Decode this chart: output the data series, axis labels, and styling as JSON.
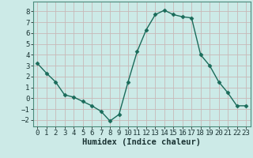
{
  "x": [
    0,
    1,
    2,
    3,
    4,
    5,
    6,
    7,
    8,
    9,
    10,
    11,
    12,
    13,
    14,
    15,
    16,
    17,
    18,
    19,
    20,
    21,
    22,
    23
  ],
  "y": [
    3.2,
    2.3,
    1.5,
    0.3,
    0.1,
    -0.3,
    -0.7,
    -1.2,
    -2.1,
    -1.5,
    1.5,
    4.3,
    6.3,
    7.7,
    8.1,
    7.7,
    7.5,
    7.4,
    4.0,
    3.0,
    1.5,
    0.5,
    -0.7,
    -0.7
  ],
  "line_color": "#1a6b5a",
  "marker": "D",
  "markersize": 2.5,
  "linewidth": 1.0,
  "xlabel": "Humidex (Indice chaleur)",
  "xlim": [
    -0.5,
    23.5
  ],
  "ylim": [
    -2.6,
    8.9
  ],
  "yticks": [
    -2,
    -1,
    0,
    1,
    2,
    3,
    4,
    5,
    6,
    7,
    8
  ],
  "xticks": [
    0,
    1,
    2,
    3,
    4,
    5,
    6,
    7,
    8,
    9,
    10,
    11,
    12,
    13,
    14,
    15,
    16,
    17,
    18,
    19,
    20,
    21,
    22,
    23
  ],
  "bg_color": "#cceae7",
  "grid_color": "#c8b8b8",
  "tick_fontsize": 6.5,
  "xlabel_fontsize": 7.5,
  "xlabel_color": "#1a3333"
}
